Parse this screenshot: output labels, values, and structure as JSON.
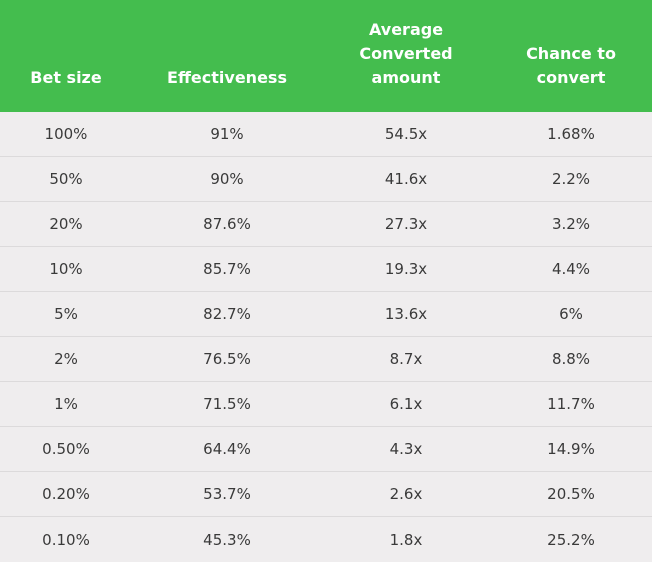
{
  "table": {
    "headers": [
      [
        "Bet size"
      ],
      [
        "Effectiveness"
      ],
      [
        "Average",
        "Converted",
        "amount"
      ],
      [
        "Chance to",
        "convert"
      ]
    ],
    "rows": [
      [
        "100%",
        "91%",
        "54.5x",
        "1.68%"
      ],
      [
        "50%",
        "90%",
        "41.6x",
        "2.2%"
      ],
      [
        "20%",
        "87.6%",
        "27.3x",
        "3.2%"
      ],
      [
        "10%",
        "85.7%",
        "19.3x",
        "4.4%"
      ],
      [
        "5%",
        "82.7%",
        "13.6x",
        "6%"
      ],
      [
        "2%",
        "76.5%",
        "8.7x",
        "8.8%"
      ],
      [
        "1%",
        "71.5%",
        "6.1x",
        "11.7%"
      ],
      [
        "0.50%",
        "64.4%",
        "4.3x",
        "14.9%"
      ],
      [
        "0.20%",
        "53.7%",
        "2.6x",
        "20.5%"
      ],
      [
        "0.10%",
        "45.3%",
        "1.8x",
        "25.2%"
      ]
    ],
    "colors": {
      "header_bg": "#44bd4e",
      "header_text": "#ffffff",
      "body_bg": "#efedee",
      "body_text": "#3a3a3a"
    }
  }
}
